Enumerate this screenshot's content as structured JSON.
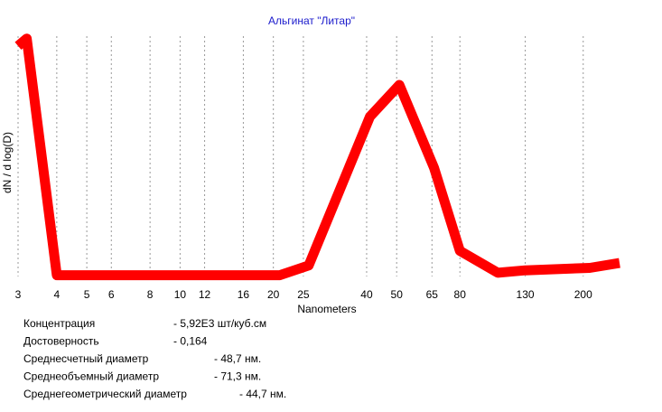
{
  "chart_data": {
    "type": "line",
    "title": "Альгинат \"Литар\"",
    "y_label": "dN / d log(D)",
    "x_label": "Nanometers",
    "x": [
      3.0,
      3.2,
      4.0,
      21,
      26,
      41,
      51,
      66,
      80,
      106,
      130,
      210,
      262
    ],
    "values": [
      96,
      99,
      2,
      2,
      6,
      67,
      80,
      46,
      12,
      3,
      4,
      5,
      7
    ],
    "color": "#ff0000",
    "log_x": true,
    "grid": true,
    "xlim": [
      3,
      262
    ],
    "ylim": [
      0,
      100
    ],
    "xticks": [
      3,
      4,
      5,
      6,
      8,
      10,
      12,
      16,
      20,
      25,
      40,
      50,
      65,
      80,
      130,
      200
    ],
    "annotations": [
      {
        "label": "Концентрация",
        "value": "- 5,92E3  шт/куб.см"
      },
      {
        "label": "Достоверность",
        "value": "- 0,164"
      },
      {
        "label": "Среднесчетный диаметр",
        "value": "- 48,7 нм."
      },
      {
        "label": "Среднеобъемный диаметр",
        "value": "- 71,3 нм."
      },
      {
        "label": "Среднегеометрический диаметр",
        "value": "- 44,7 нм."
      }
    ]
  }
}
